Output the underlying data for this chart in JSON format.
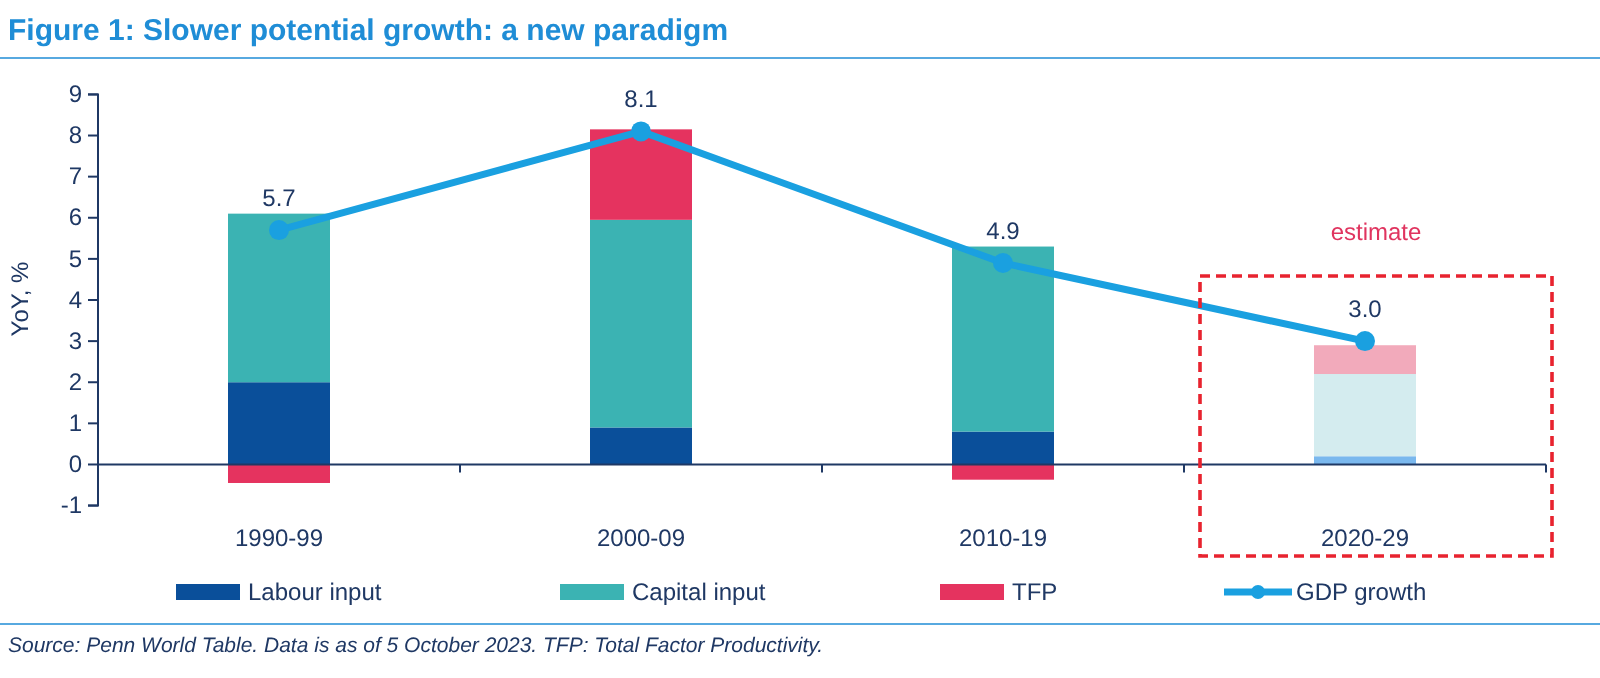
{
  "chart_data": {
    "type": "bar",
    "title": "Figure 1: Slower potential growth: a new paradigm",
    "ylabel": "YoY, %",
    "categories": [
      "1990-99",
      "2000-09",
      "2010-19",
      "2020-29"
    ],
    "stacked": true,
    "series": [
      {
        "name": "Labour input",
        "color": "#0a4f9a",
        "colors": [
          "#0a4f9a",
          "#0a4f9a",
          "#0a4f9a",
          "#7ab8ee"
        ],
        "values": [
          2.0,
          0.9,
          0.8,
          0.2
        ]
      },
      {
        "name": "Capital input",
        "color": "#3bb3b3",
        "colors": [
          "#3bb3b3",
          "#3bb3b3",
          "#3bb3b3",
          "#d4ecef"
        ],
        "values": [
          4.1,
          5.05,
          4.5,
          2.0
        ]
      },
      {
        "name": "TFP",
        "color": "#e5335f",
        "colors": [
          "#e5335f",
          "#e5335f",
          "#e5335f",
          "#f2aabb"
        ],
        "values": [
          -0.45,
          2.2,
          -0.37,
          0.7
        ]
      },
      {
        "name": "GDP growth",
        "type": "line",
        "color": "#1aa0e0",
        "values": [
          5.7,
          8.1,
          4.9,
          3.0
        ],
        "value_labels": [
          "5.7",
          "8.1",
          "4.9",
          "3.0"
        ],
        "marker": "circle"
      }
    ],
    "ylim": [
      -1,
      9
    ],
    "yticks": [
      -1,
      0,
      1,
      2,
      3,
      4,
      5,
      6,
      7,
      8,
      9
    ],
    "legend": "bottom",
    "annotations": [
      "estimate",
      "Source: Penn World Table. Data is as of 5 October 2023. TFP: Total Factor Productivity."
    ]
  }
}
